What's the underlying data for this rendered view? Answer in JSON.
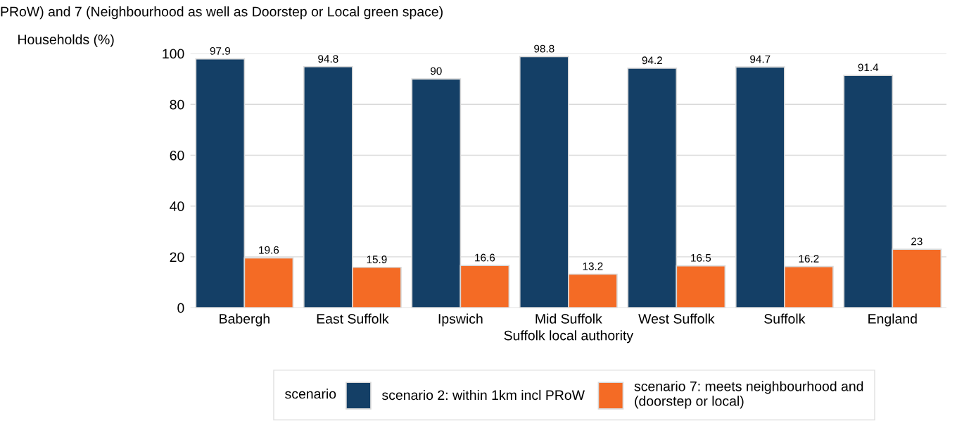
{
  "chart_data": {
    "type": "bar",
    "title": "PRoW) and 7 (Neighbourhood as well as Doorstep or Local green space)",
    "xlabel": "Suffolk local authority",
    "ylabel": "Households (%)",
    "legend_title": "scenario",
    "categories": [
      "Babergh",
      "East Suffolk",
      "Ipswich",
      "Mid Suffolk",
      "West Suffolk",
      "Suffolk",
      "England"
    ],
    "series": [
      {
        "name": "scenario 2: within 1km incl PRoW",
        "color": "#143f66",
        "values": [
          97.9,
          94.8,
          90,
          98.8,
          94.2,
          94.7,
          91.4
        ]
      },
      {
        "name": "scenario 7: meets neighbourhood and\n(doorstep or local)",
        "color": "#f46b25",
        "values": [
          19.6,
          15.9,
          16.6,
          13.2,
          16.5,
          16.2,
          23
        ]
      }
    ],
    "ylim": [
      0,
      100
    ],
    "yticks": [
      0,
      20,
      40,
      60,
      80,
      100
    ],
    "grid": "y",
    "legend": "bottom",
    "data_labels": true
  }
}
